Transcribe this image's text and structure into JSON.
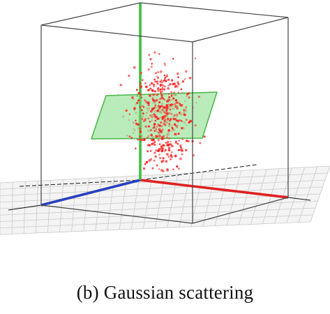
{
  "figure": {
    "caption": "(b) Gaussian scattering",
    "scene": {
      "items": [
        "ground-grid",
        "bounding-box",
        "x-axis",
        "y-axis",
        "z-axis",
        "plane",
        "points"
      ],
      "colors": {
        "background": "#ffffff",
        "grid_line": "#c9c9c9",
        "grid_fill": "#f4f4f4",
        "box_edge": "#444444",
        "x_axis": "#e02020",
        "y_axis": "#3fbf3f",
        "z_axis": "#2a3fbf",
        "plane_fill": "#9fe39f",
        "plane_edge": "#4cb84c",
        "points": "#ff2020",
        "axis_extension": "#111111"
      },
      "point_count": 520,
      "distribution": "gaussian"
    }
  }
}
